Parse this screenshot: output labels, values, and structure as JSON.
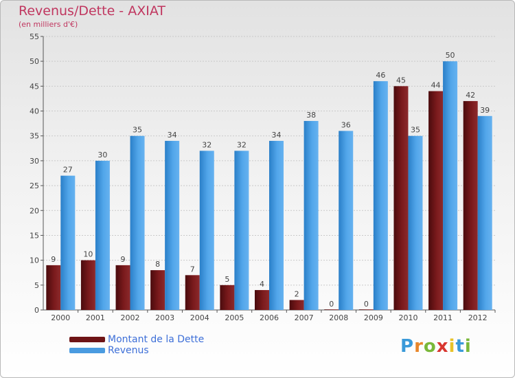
{
  "header": {
    "title": "Revenus/Dette - AXIAT",
    "subtitle": "(en milliers d'€)"
  },
  "chart_data": {
    "type": "bar",
    "categories": [
      "2000",
      "2001",
      "2002",
      "2003",
      "2004",
      "2005",
      "2006",
      "2007",
      "2008",
      "2009",
      "2010",
      "2011",
      "2012"
    ],
    "series": [
      {
        "name": "Montant de la Dette",
        "color": "#6e1416",
        "values": [
          9,
          10,
          9,
          8,
          7,
          5,
          4,
          2,
          0,
          0,
          45,
          44,
          42
        ]
      },
      {
        "name": "Revenus",
        "color": "#4a9be0",
        "values": [
          27,
          30,
          35,
          34,
          32,
          32,
          34,
          38,
          36,
          46,
          35,
          50,
          39
        ]
      }
    ],
    "ylim": [
      0,
      55
    ],
    "yticks": [
      0,
      5,
      10,
      15,
      20,
      25,
      30,
      35,
      40,
      45,
      50,
      55
    ],
    "grid": true,
    "legend": "bottom-left"
  },
  "legend": {
    "items": [
      {
        "label": "Montant de la Dette",
        "color": "#6e1416"
      },
      {
        "label": "Revenus",
        "color": "#4a9be0"
      }
    ]
  },
  "logo": {
    "letters": [
      "P",
      "r",
      "o",
      "x",
      "i",
      "t",
      "i"
    ],
    "colors": [
      "#3a9ad9",
      "#e8862a",
      "#7ab83a",
      "#d8362f",
      "#e8c32a",
      "#3a9ad9",
      "#7ab83a"
    ]
  }
}
